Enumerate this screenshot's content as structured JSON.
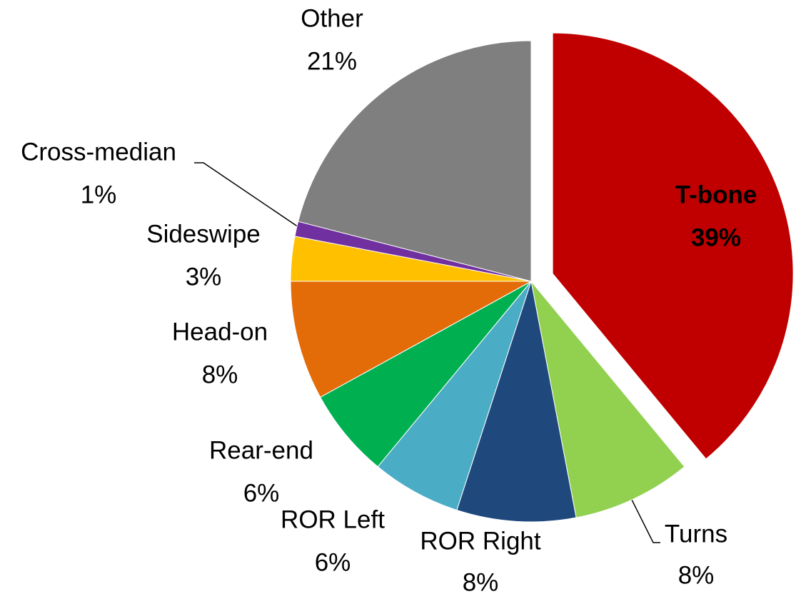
{
  "chart_data": {
    "type": "pie",
    "categories": [
      "T-bone",
      "Turns",
      "ROR Right",
      "ROR Left",
      "Rear-end",
      "Head-on",
      "Sideswipe",
      "Cross-median",
      "Other"
    ],
    "values": [
      39,
      8,
      8,
      6,
      6,
      8,
      3,
      1,
      21
    ],
    "value_labels": [
      "39%",
      "8%",
      "8%",
      "6%",
      "6%",
      "8%",
      "3%",
      "1%",
      "21%"
    ],
    "colors": [
      "#c00000",
      "#92d050",
      "#1f497d",
      "#4bacc6",
      "#00b050",
      "#e36c09",
      "#ffc000",
      "#7030a0",
      "#7f7f7f"
    ]
  }
}
